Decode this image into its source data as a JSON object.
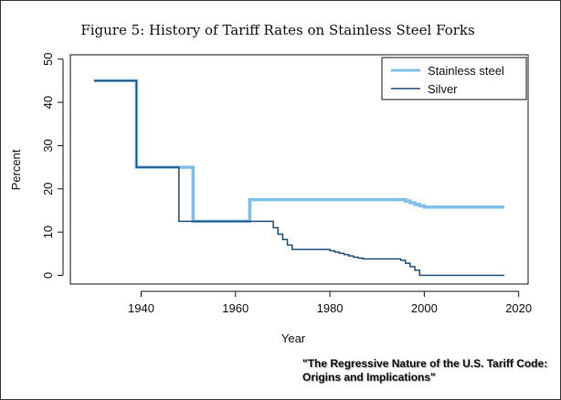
{
  "chart_data": {
    "type": "line",
    "title": "Figure 5: History of Tariff Rates on Stainless Steel Forks",
    "xlabel": "Year",
    "ylabel": "Percent",
    "xlim": [
      1925,
      2022
    ],
    "ylim": [
      -2,
      51
    ],
    "xticks": [
      1940,
      1960,
      1980,
      2000,
      2020
    ],
    "yticks": [
      0,
      10,
      20,
      30,
      40,
      50
    ],
    "legend_position": "top-right",
    "series": [
      {
        "name": "Stainless steel",
        "color": "#7fbfe8",
        "width": "thick",
        "step": true,
        "x": [
          1930,
          1939,
          1939,
          1951,
          1951,
          1963,
          1963,
          1995,
          1996,
          1997,
          1998,
          1999,
          2000,
          2017
        ],
        "y": [
          45,
          45,
          25,
          25,
          12.5,
          12.5,
          17.5,
          17.5,
          17.2,
          16.8,
          16.4,
          16.1,
          15.8,
          15.8
        ]
      },
      {
        "name": "Silver",
        "color": "#1f4e79",
        "width": "thin",
        "step": true,
        "x": [
          1930,
          1939,
          1939,
          1948,
          1948,
          1968,
          1969,
          1970,
          1971,
          1972,
          1980,
          1981,
          1982,
          1983,
          1984,
          1985,
          1986,
          1987,
          1995,
          1996,
          1997,
          1998,
          1999,
          2017
        ],
        "y": [
          45,
          45,
          25,
          25,
          12.5,
          11,
          9.5,
          8.3,
          7,
          6,
          5.7,
          5.4,
          5.1,
          4.8,
          4.5,
          4.2,
          4,
          3.8,
          3.5,
          2.8,
          2,
          1.2,
          0,
          0
        ]
      }
    ]
  },
  "note": {
    "line1": "\"The Regressive Nature of the U.S. Tariff Code:",
    "line2": "Origins and Implications\""
  }
}
